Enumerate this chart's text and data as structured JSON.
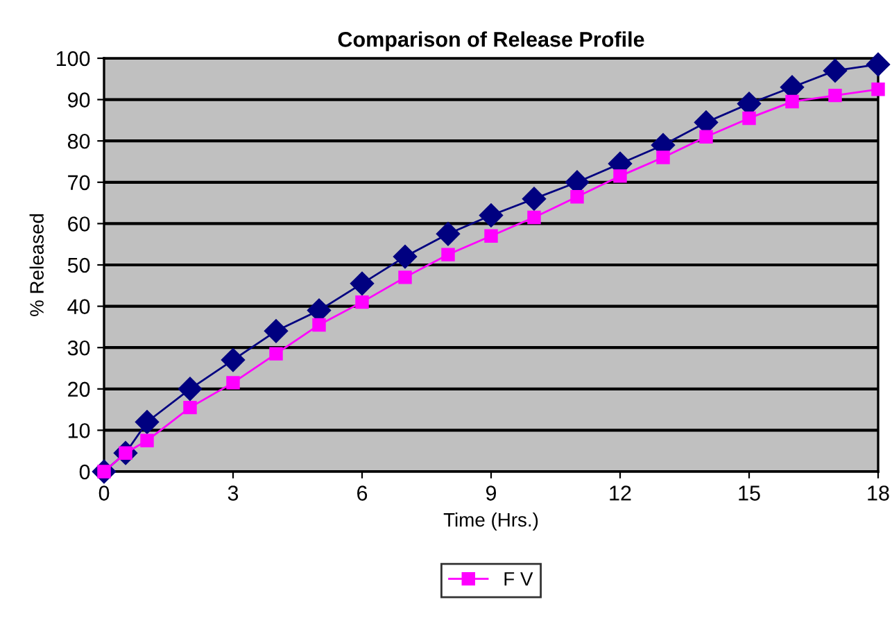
{
  "chart_data": {
    "type": "line",
    "title": "Comparison of Release Profile",
    "xlabel": "Time (Hrs.)",
    "ylabel": "% Released",
    "x": [
      0,
      0.5,
      1,
      2,
      3,
      4,
      5,
      6,
      7,
      8,
      9,
      10,
      11,
      12,
      13,
      14,
      15,
      16,
      17,
      18
    ],
    "series": [
      {
        "color": "#000080",
        "marker": "diamond",
        "values": [
          0,
          4.5,
          12,
          20,
          27,
          34,
          39,
          45.5,
          52,
          57.5,
          62,
          66,
          70,
          74.5,
          79,
          84.5,
          89,
          93,
          97,
          98.5
        ]
      },
      {
        "name": "F V",
        "color": "#ff00ff",
        "marker": "square",
        "values": [
          0,
          4.5,
          7.5,
          15.5,
          21.5,
          28.5,
          35.5,
          41,
          47,
          52.5,
          57,
          61.5,
          66.5,
          71.5,
          76,
          81,
          85.5,
          89.5,
          91,
          92.5
        ]
      }
    ],
    "xlim": [
      0,
      18
    ],
    "xticks": [
      0,
      3,
      6,
      9,
      12,
      15,
      18
    ],
    "ylim": [
      0,
      100
    ],
    "yticks": [
      0,
      10,
      20,
      30,
      40,
      50,
      60,
      70,
      80,
      90,
      100
    ],
    "grid": "y",
    "legend": "bottom",
    "line_style": "solid"
  }
}
